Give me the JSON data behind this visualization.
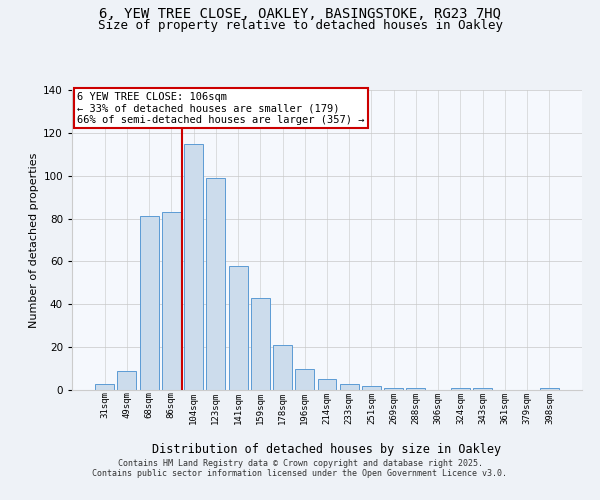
{
  "title1": "6, YEW TREE CLOSE, OAKLEY, BASINGSTOKE, RG23 7HQ",
  "title2": "Size of property relative to detached houses in Oakley",
  "xlabel": "Distribution of detached houses by size in Oakley",
  "ylabel": "Number of detached properties",
  "categories": [
    "31sqm",
    "49sqm",
    "68sqm",
    "86sqm",
    "104sqm",
    "123sqm",
    "141sqm",
    "159sqm",
    "178sqm",
    "196sqm",
    "214sqm",
    "233sqm",
    "251sqm",
    "269sqm",
    "288sqm",
    "306sqm",
    "324sqm",
    "343sqm",
    "361sqm",
    "379sqm",
    "398sqm"
  ],
  "values": [
    3,
    9,
    81,
    83,
    115,
    99,
    58,
    43,
    21,
    10,
    5,
    3,
    2,
    1,
    1,
    0,
    1,
    1,
    0,
    0,
    1
  ],
  "bar_color": "#ccdcec",
  "bar_edge_color": "#5b9bd5",
  "vline_color": "#cc0000",
  "vline_x": 3.5,
  "annotation_text": "6 YEW TREE CLOSE: 106sqm\n← 33% of detached houses are smaller (179)\n66% of semi-detached houses are larger (357) →",
  "annotation_box_color": "#cc0000",
  "ylim": [
    0,
    140
  ],
  "yticks": [
    0,
    20,
    40,
    60,
    80,
    100,
    120,
    140
  ],
  "footer1": "Contains HM Land Registry data © Crown copyright and database right 2025.",
  "footer2": "Contains public sector information licensed under the Open Government Licence v3.0.",
  "bg_color": "#eef2f7",
  "plot_bg_color": "#f5f8fd",
  "title_fontsize": 10,
  "subtitle_fontsize": 9
}
